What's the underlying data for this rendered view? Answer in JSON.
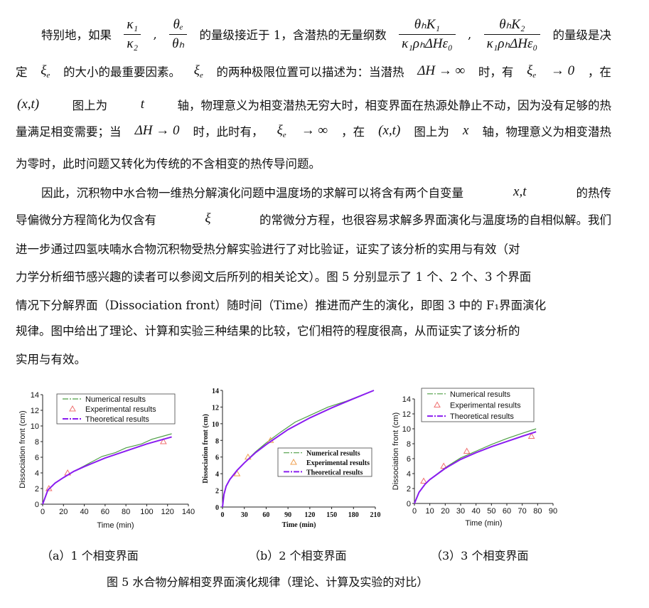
{
  "paragraphs": {
    "lines": [
      [
        "特别地，如果",
        {
          "f": [
            "κ₁",
            "κ₂"
          ]
        },
        ",",
        {
          "f": [
            "θₑ",
            "θₕ"
          ]
        },
        "的量级接近于 1，含潜热的无量纲数",
        {
          "f": [
            "θₕK₁",
            "κ₁ρₕΔHε₀"
          ]
        },
        ",",
        {
          "f": [
            "θₕK₂",
            "κ₁ρₕΔHε₀"
          ]
        },
        "的量级是决"
      ],
      [
        "定",
        {
          "m": "ξ",
          "s": "e"
        },
        "的大小的最重要因素。",
        {
          "m": "ξ",
          "s": "e"
        },
        "的两种极限位置可以描述为：当潜热",
        {
          "m": "ΔH → ∞"
        },
        "时，有",
        {
          "m": "ξ",
          "s": "e"
        },
        {
          "m": "→ 0"
        },
        "，在"
      ],
      [
        {
          "m": "(x,t)"
        },
        "图上为",
        {
          "m": "t"
        },
        "轴，物理意义为相变潜热无穷大时，相变界面在热源处静止不动，因为没有足够的热"
      ],
      [
        "量满足相变需要；当",
        {
          "m": "ΔH → 0"
        },
        "时，此时有，",
        {
          "m": "ξ",
          "s": "e"
        },
        {
          "m": "→ ∞"
        },
        "，在",
        {
          "m": "(x,t)"
        },
        "图上为",
        {
          "m": "x"
        },
        "轴，物理意义为相变潜热"
      ],
      [
        "为零时，此时问题又转化为传统的不含相变的热传导问题。"
      ],
      [
        "因此，沉积物中水合物一维热分解演化问题中温度场的求解可以将含有两个自变量",
        {
          "m": "x,t"
        },
        "的热传"
      ],
      [
        "导偏微分方程简化为仅含有",
        {
          "m": "ξ"
        },
        "的常微分方程，也很容易求解多界面演化与温度场的自相似解。我们"
      ],
      [
        "进一步通过四氢呋喃水合物沉积物受热分解实验进行了对比验证，证实了该分析的实用与有效（对"
      ],
      [
        "力学分析细节感兴趣的读者可以参阅文后所列的相关论文）。图 5 分别显示了 1 个、2 个、3 个界面"
      ],
      [
        "情况下分解界面（Dissociation front）随时间（Time）推进而产生的演化，即图 3 中的 F₁界面演化"
      ],
      [
        "规律。图中给出了理论、计算和实验三种结果的比较，它们相符的程度很高，从而证实了该分析的"
      ],
      [
        "实用与有效。"
      ]
    ]
  },
  "figure": {
    "subcaptions": [
      "（a）1 个相变界面",
      "（b）2 个相变界面",
      "（3）3 个相变界面"
    ],
    "caption": "图 5  水合物分解相变界面演化规律（理论、计算及实验的对比）"
  },
  "colors": {
    "numerical": "#4e9f45",
    "theoretical": "#8a1cf0",
    "experimental_a": "#f07070",
    "experimental_b": "#f0a050"
  },
  "chart_data": [
    {
      "type": "line",
      "xlabel": "Time (min)",
      "ylabel": "Dissociation front (cm)",
      "xlim": [
        0,
        140
      ],
      "ylim": [
        0,
        14
      ],
      "xticks": [
        0,
        20,
        40,
        60,
        80,
        100,
        120,
        140
      ],
      "yticks": [
        0,
        2,
        4,
        6,
        8,
        10,
        12,
        14
      ],
      "legend": "top",
      "series": [
        {
          "name": "Numerical results",
          "style": "dash-dot",
          "x": [
            0,
            5,
            12,
            20,
            30,
            40,
            57,
            70,
            80,
            95,
            105,
            124
          ],
          "y": [
            0,
            1.8,
            2.7,
            3.4,
            4.2,
            4.9,
            6.1,
            6.6,
            7.2,
            7.7,
            8.3,
            9.0
          ]
        },
        {
          "name": "Experimental results",
          "style": "triangle",
          "x": [
            6,
            24,
            116
          ],
          "y": [
            2,
            4,
            8
          ]
        },
        {
          "name": "Theoretical results",
          "style": "dash-dot",
          "x": [
            0,
            5,
            12,
            20,
            30,
            40,
            60,
            80,
            100,
            124
          ],
          "y": [
            0,
            1.8,
            2.7,
            3.4,
            4.2,
            4.8,
            5.9,
            6.8,
            7.7,
            8.6
          ]
        }
      ]
    },
    {
      "type": "line",
      "xlabel": "Time (min)",
      "ylabel": "Dissociation front (cm)",
      "xlim": [
        0,
        210
      ],
      "ylim": [
        0,
        14
      ],
      "xticks": [
        0,
        30,
        60,
        90,
        120,
        150,
        180,
        210
      ],
      "yticks": [
        0,
        2,
        4,
        6,
        8,
        10,
        12,
        14
      ],
      "legend": "center-right",
      "series": [
        {
          "name": "Numerical results",
          "style": "dash-dot",
          "x": [
            0,
            2,
            5,
            10,
            20,
            30,
            45,
            60,
            80,
            100,
            120,
            145,
            170,
            208
          ],
          "y": [
            0,
            1.5,
            2.5,
            3.3,
            4.4,
            5.3,
            6.6,
            7.7,
            9.0,
            10.2,
            11.0,
            12.0,
            12.7,
            14.0
          ]
        },
        {
          "name": "Experimental results",
          "style": "triangle",
          "x": [
            20,
            35,
            66
          ],
          "y": [
            4,
            6,
            8
          ]
        },
        {
          "name": "Theoretical results",
          "style": "dash-dot",
          "x": [
            0,
            2,
            5,
            10,
            20,
            30,
            45,
            60,
            90,
            120,
            150,
            180,
            208
          ],
          "y": [
            0,
            1.5,
            2.5,
            3.3,
            4.4,
            5.3,
            6.5,
            7.5,
            9.3,
            10.7,
            11.9,
            13.0,
            14.0
          ]
        }
      ]
    },
    {
      "type": "line",
      "xlabel": "Time (min)",
      "ylabel": "Dissociation front (cm)",
      "xlim": [
        0,
        90
      ],
      "ylim": [
        0,
        14
      ],
      "xticks": [
        0,
        10,
        20,
        30,
        40,
        50,
        60,
        70,
        80,
        90
      ],
      "yticks": [
        0,
        2,
        4,
        6,
        8,
        10,
        12,
        14
      ],
      "legend": "top",
      "series": [
        {
          "name": "Numerical results",
          "style": "dash-dot",
          "x": [
            0,
            3,
            7,
            10,
            20,
            30,
            40,
            50,
            60,
            70,
            79
          ],
          "y": [
            0,
            1.5,
            2.6,
            3.2,
            4.8,
            6.1,
            7.0,
            7.9,
            8.7,
            9.4,
            10.0
          ]
        },
        {
          "name": "Experimental results",
          "style": "triangle",
          "x": [
            6,
            19,
            34,
            76
          ],
          "y": [
            3,
            5,
            7,
            9
          ]
        },
        {
          "name": "Theoretical results",
          "style": "dash-dot",
          "x": [
            0,
            3,
            7,
            10,
            20,
            30,
            40,
            50,
            60,
            70,
            79
          ],
          "y": [
            0,
            1.5,
            2.6,
            3.2,
            4.7,
            5.9,
            6.8,
            7.6,
            8.3,
            9.0,
            9.6
          ]
        }
      ]
    }
  ]
}
